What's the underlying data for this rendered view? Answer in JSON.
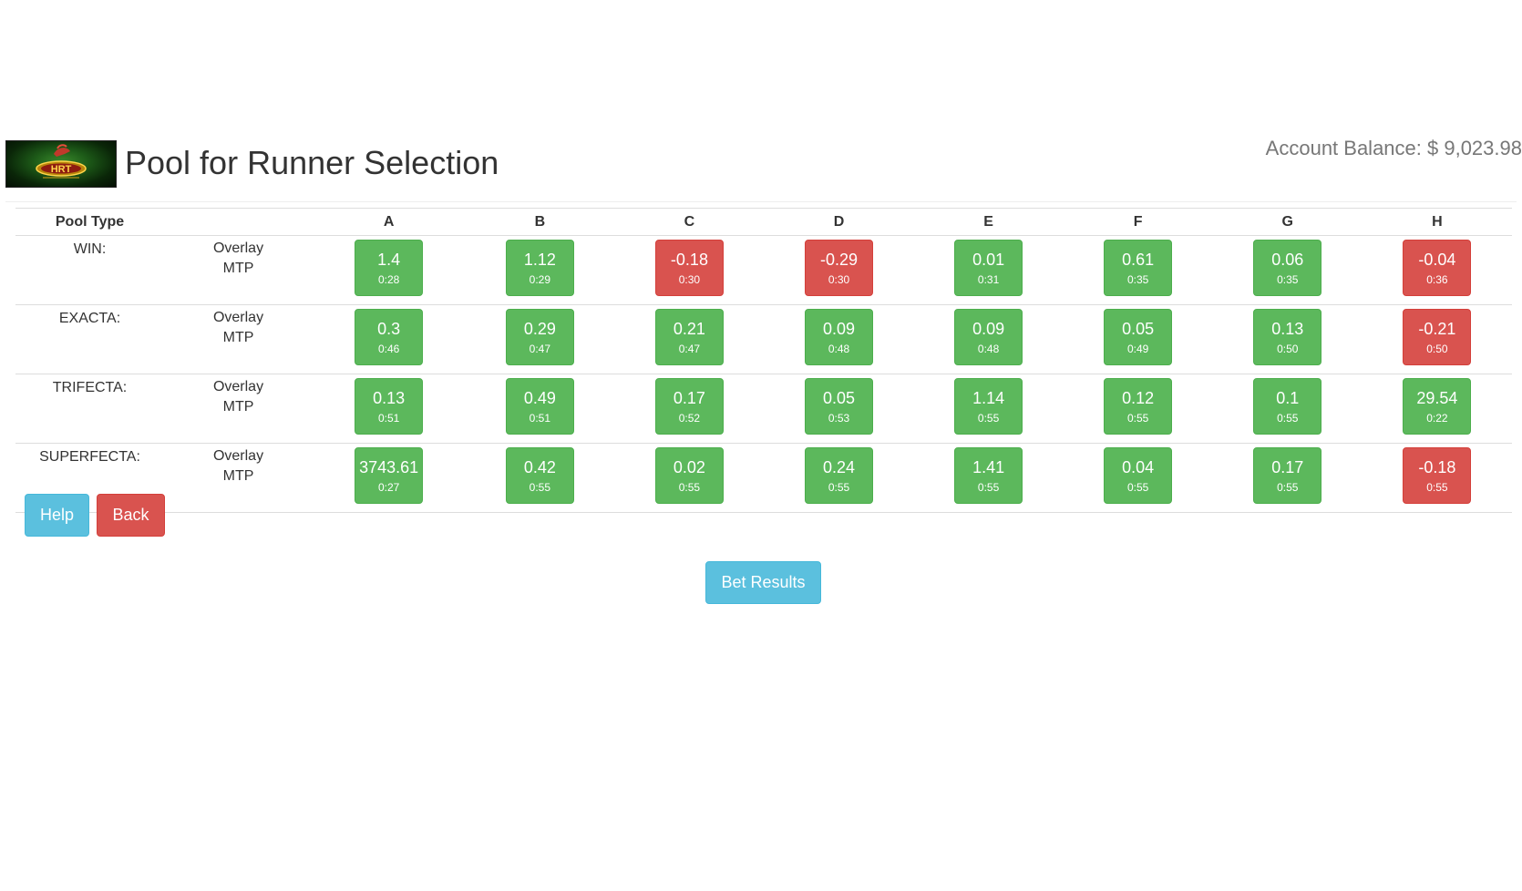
{
  "header": {
    "logo_text": "HRT",
    "title": "Pool for Runner Selection",
    "balance_label": "Account Balance: $ 9,023.98"
  },
  "table": {
    "pool_type_header": "Pool Type",
    "runners": [
      "A",
      "B",
      "C",
      "D",
      "E",
      "F",
      "G",
      "H"
    ],
    "overlay_label": "Overlay",
    "mtp_label": "MTP",
    "rows": [
      {
        "pool": "WIN:",
        "cells": [
          {
            "value": "1.4",
            "mtp": "0:28",
            "status": "positive"
          },
          {
            "value": "1.12",
            "mtp": "0:29",
            "status": "positive"
          },
          {
            "value": "-0.18",
            "mtp": "0:30",
            "status": "negative"
          },
          {
            "value": "-0.29",
            "mtp": "0:30",
            "status": "negative"
          },
          {
            "value": "0.01",
            "mtp": "0:31",
            "status": "positive"
          },
          {
            "value": "0.61",
            "mtp": "0:35",
            "status": "positive"
          },
          {
            "value": "0.06",
            "mtp": "0:35",
            "status": "positive"
          },
          {
            "value": "-0.04",
            "mtp": "0:36",
            "status": "negative"
          }
        ]
      },
      {
        "pool": "EXACTA:",
        "cells": [
          {
            "value": "0.3",
            "mtp": "0:46",
            "status": "positive"
          },
          {
            "value": "0.29",
            "mtp": "0:47",
            "status": "positive"
          },
          {
            "value": "0.21",
            "mtp": "0:47",
            "status": "positive"
          },
          {
            "value": "0.09",
            "mtp": "0:48",
            "status": "positive"
          },
          {
            "value": "0.09",
            "mtp": "0:48",
            "status": "positive"
          },
          {
            "value": "0.05",
            "mtp": "0:49",
            "status": "positive"
          },
          {
            "value": "0.13",
            "mtp": "0:50",
            "status": "positive"
          },
          {
            "value": "-0.21",
            "mtp": "0:50",
            "status": "negative"
          }
        ]
      },
      {
        "pool": "TRIFECTA:",
        "cells": [
          {
            "value": "0.13",
            "mtp": "0:51",
            "status": "positive"
          },
          {
            "value": "0.49",
            "mtp": "0:51",
            "status": "positive"
          },
          {
            "value": "0.17",
            "mtp": "0:52",
            "status": "positive"
          },
          {
            "value": "0.05",
            "mtp": "0:53",
            "status": "positive"
          },
          {
            "value": "1.14",
            "mtp": "0:55",
            "status": "positive"
          },
          {
            "value": "0.12",
            "mtp": "0:55",
            "status": "positive"
          },
          {
            "value": "0.1",
            "mtp": "0:55",
            "status": "positive"
          },
          {
            "value": "29.54",
            "mtp": "0:22",
            "status": "positive"
          }
        ]
      },
      {
        "pool": "SUPERFECTA:",
        "cells": [
          {
            "value": "3743.61",
            "mtp": "0:27",
            "status": "positive"
          },
          {
            "value": "0.42",
            "mtp": "0:55",
            "status": "positive"
          },
          {
            "value": "0.02",
            "mtp": "0:55",
            "status": "positive"
          },
          {
            "value": "0.24",
            "mtp": "0:55",
            "status": "positive"
          },
          {
            "value": "1.41",
            "mtp": "0:55",
            "status": "positive"
          },
          {
            "value": "0.04",
            "mtp": "0:55",
            "status": "positive"
          },
          {
            "value": "0.17",
            "mtp": "0:55",
            "status": "positive"
          },
          {
            "value": "-0.18",
            "mtp": "0:55",
            "status": "negative"
          }
        ]
      }
    ]
  },
  "buttons": {
    "help": "Help",
    "back": "Back",
    "bet_results": "Bet Results"
  },
  "colors": {
    "positive": "#5cb85c",
    "negative": "#d9534f",
    "info": "#5bc0de"
  }
}
